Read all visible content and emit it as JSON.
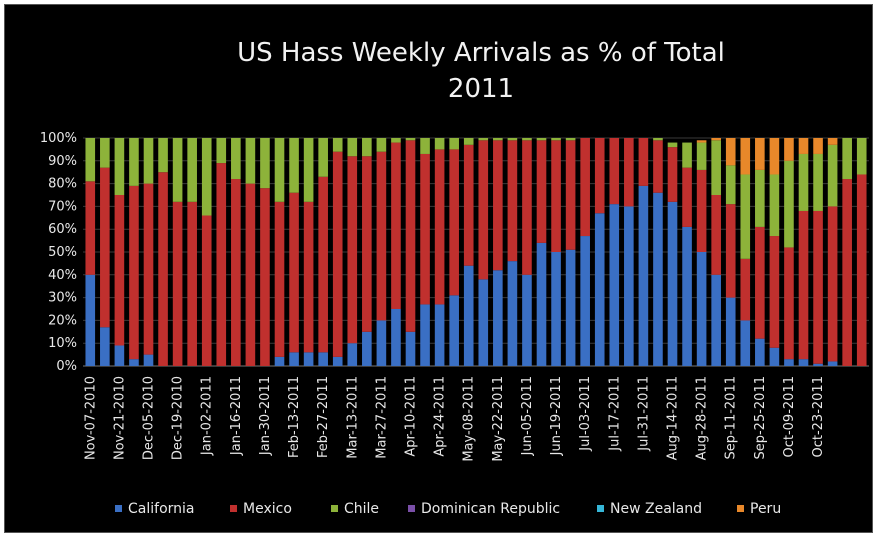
{
  "chart_data": {
    "type": "bar",
    "stacked": true,
    "title": [
      "US Hass Weekly Arrivals as % of Total",
      "2011"
    ],
    "xlabel": "",
    "ylabel": "",
    "ylim": [
      0,
      100
    ],
    "yticks": [
      "0%",
      "10%",
      "20%",
      "30%",
      "40%",
      "50%",
      "60%",
      "70%",
      "80%",
      "90%",
      "100%"
    ],
    "xtick_labels": [
      "Nov-07-2010",
      "Nov-21-2010",
      "Dec-05-2010",
      "Dec-19-2010",
      "Jan-02-2011",
      "Jan-16-2011",
      "Jan-30-2011",
      "Feb-13-2011",
      "Feb-27-2011",
      "Mar-13-2011",
      "Mar-27-2011",
      "Apr-10-2011",
      "Apr-24-2011",
      "May-08-2011",
      "May-22-2011",
      "Jun-05-2011",
      "Jun-19-2011",
      "Jul-03-2011",
      "Jul-17-2011",
      "Jul-31-2011",
      "Aug-14-2011",
      "Aug-28-2011",
      "Sep-11-2011",
      "Sep-25-2011",
      "Oct-09-2011",
      "Oct-23-2011"
    ],
    "legend_position": "bottom",
    "grid": true,
    "series": [
      {
        "name": "California",
        "color": "#3a6fc4",
        "values": [
          40,
          17,
          9,
          3,
          5,
          0,
          0,
          0,
          0,
          0,
          0,
          0,
          0,
          4,
          6,
          6,
          6,
          4,
          10,
          15,
          20,
          25,
          15,
          27,
          27,
          31,
          44,
          38,
          42,
          46,
          40,
          54,
          50,
          51,
          57,
          67,
          71,
          70,
          79,
          76,
          72,
          61,
          50,
          40,
          30,
          20,
          12,
          8,
          3,
          3,
          1,
          2,
          0,
          0
        ]
      },
      {
        "name": "Mexico",
        "color": "#c0302e",
        "values": [
          41,
          70,
          66,
          76,
          75,
          85,
          72,
          72,
          66,
          89,
          82,
          80,
          78,
          68,
          70,
          66,
          77,
          90,
          82,
          77,
          74,
          73,
          84,
          66,
          68,
          64,
          53,
          61,
          57,
          53,
          59,
          45,
          49,
          48,
          43,
          33,
          29,
          30,
          21,
          23,
          24,
          26,
          36,
          35,
          41,
          27,
          49,
          49,
          49,
          65,
          67,
          68,
          82,
          84
        ]
      },
      {
        "name": "Chile",
        "color": "#8db33a",
        "values": [
          19,
          13,
          25,
          21,
          20,
          15,
          28,
          28,
          34,
          11,
          18,
          20,
          22,
          28,
          24,
          28,
          17,
          6,
          8,
          8,
          6,
          2,
          1,
          7,
          5,
          5,
          3,
          1,
          1,
          1,
          1,
          1,
          1,
          1,
          0,
          0,
          0,
          0,
          0,
          1,
          2,
          11,
          12,
          24,
          17,
          37,
          25,
          27,
          38,
          25,
          25,
          27,
          18,
          16
        ]
      },
      {
        "name": "Dominican Republic",
        "color": "#7a4fa8",
        "values": [
          0,
          0,
          0,
          0,
          0,
          0,
          0,
          0,
          0,
          0,
          0,
          0,
          0,
          0,
          0,
          0,
          0,
          0,
          0,
          0,
          0,
          0,
          0,
          0,
          0,
          0,
          0,
          0,
          0,
          0,
          0,
          0,
          0,
          0,
          0,
          0,
          0,
          0,
          0,
          0,
          0,
          0,
          0,
          0,
          0,
          0,
          0,
          0,
          0,
          0,
          0,
          0,
          0,
          0
        ]
      },
      {
        "name": "New Zealand",
        "color": "#36b7d8",
        "values": [
          0,
          0,
          0,
          0,
          0,
          0,
          0,
          0,
          0,
          0,
          0,
          0,
          0,
          0,
          0,
          0,
          0,
          0,
          0,
          0,
          0,
          0,
          0,
          0,
          0,
          0,
          0,
          0,
          0,
          0,
          0,
          0,
          0,
          0,
          0,
          0,
          0,
          0,
          0,
          0,
          0,
          0,
          0,
          0,
          0,
          0,
          0,
          0,
          0,
          0,
          0,
          0,
          0,
          0
        ]
      },
      {
        "name": "Peru",
        "color": "#e8882a",
        "values": [
          0,
          0,
          0,
          0,
          0,
          0,
          0,
          0,
          0,
          0,
          0,
          0,
          0,
          0,
          0,
          0,
          0,
          0,
          0,
          0,
          0,
          0,
          0,
          0,
          0,
          0,
          0,
          0,
          0,
          0,
          0,
          0,
          0,
          0,
          0,
          0,
          0,
          0,
          0,
          0,
          0,
          0,
          1,
          1,
          12,
          16,
          14,
          16,
          10,
          7,
          7,
          3,
          0,
          0
        ]
      }
    ]
  }
}
